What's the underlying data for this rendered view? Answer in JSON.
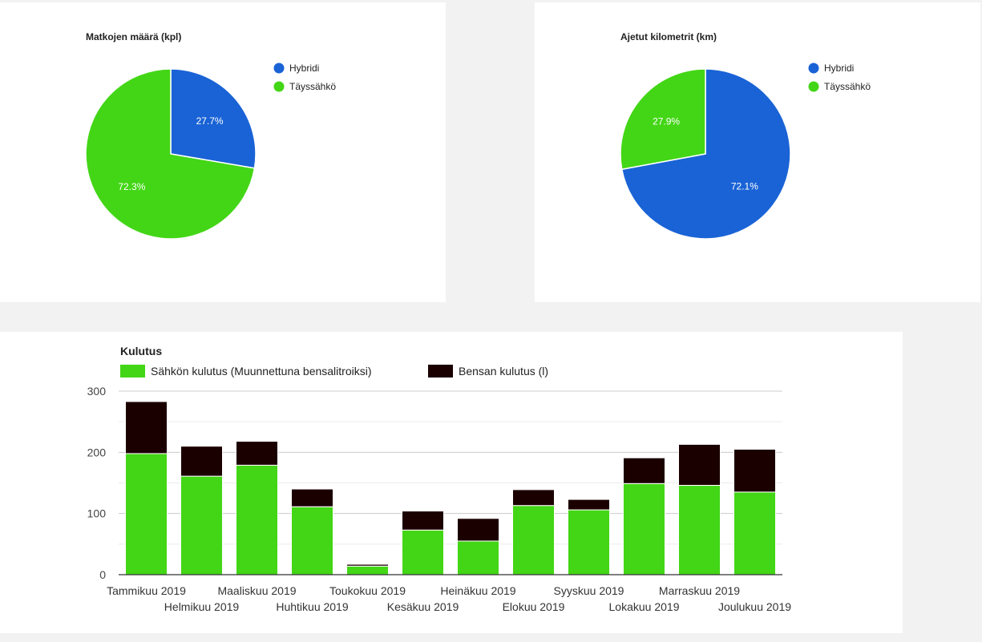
{
  "colors": {
    "hybrid": "#1a63d6",
    "electric": "#43d616",
    "petrol": "#1b0000",
    "grid": "#dddddd",
    "axis": "#333333",
    "text": "#222222"
  },
  "chart_data": [
    {
      "type": "pie",
      "title": "Matkojen määrä (kpl)",
      "legend_position": "right",
      "slices": [
        {
          "label": "Hybridi",
          "value": 27.7,
          "value_label": "27.7%",
          "color": "#1a63d6"
        },
        {
          "label": "Täyssähkö",
          "value": 72.3,
          "value_label": "72.3%",
          "color": "#43d616"
        }
      ]
    },
    {
      "type": "pie",
      "title": "Ajetut kilometrit (km)",
      "legend_position": "right",
      "slices": [
        {
          "label": "Hybridi",
          "value": 72.1,
          "value_label": "72.1%",
          "color": "#1a63d6"
        },
        {
          "label": "Täyssähkö",
          "value": 27.9,
          "value_label": "27.9%",
          "color": "#43d616"
        }
      ]
    },
    {
      "type": "bar",
      "stacked": true,
      "title": "Kulutus",
      "legend_position": "top",
      "grid": true,
      "ylim": [
        0,
        300
      ],
      "yticks": [
        0,
        100,
        200,
        300
      ],
      "categories": [
        "Tammikuu 2019",
        "Helmikuu 2019",
        "Maaliskuu 2019",
        "Huhtikuu 2019",
        "Toukokuu 2019",
        "Kesäkuu 2019",
        "Heinäkuu 2019",
        "Elokuu 2019",
        "Syyskuu 2019",
        "Lokakuu 2019",
        "Marraskuu 2019",
        "Joulukuu 2019"
      ],
      "series": [
        {
          "name": "Sähkön kulutus (Muunnettuna bensalitroiksi)",
          "color": "#43d616",
          "values": [
            198,
            161,
            179,
            111,
            14,
            73,
            55,
            113,
            106,
            149,
            146,
            135
          ]
        },
        {
          "name": "Bensan kulutus (l)",
          "color": "#1b0000",
          "values": [
            85,
            49,
            39,
            29,
            3,
            31,
            37,
            26,
            17,
            42,
            67,
            70
          ]
        }
      ]
    }
  ]
}
